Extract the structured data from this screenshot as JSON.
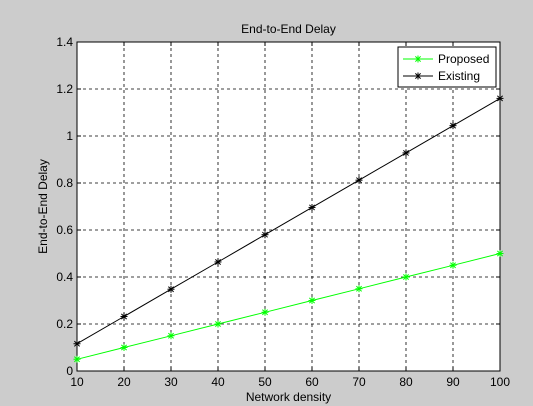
{
  "chart_data": {
    "type": "line",
    "title": "End-to-End Delay",
    "xlabel": "Network density",
    "ylabel": "End-to-End Delay",
    "xlim": [
      10,
      100
    ],
    "ylim": [
      0,
      1.4
    ],
    "x_ticks": [
      "10",
      "20",
      "30",
      "40",
      "50",
      "60",
      "70",
      "80",
      "90",
      "100"
    ],
    "y_ticks": [
      "0",
      "0.2",
      "0.4",
      "0.6",
      "0.8",
      "1",
      "1.2",
      "1.4"
    ],
    "grid": true,
    "legend_position": "top-right",
    "x": [
      10,
      20,
      30,
      40,
      50,
      60,
      70,
      80,
      90,
      100
    ],
    "series": [
      {
        "name": "Proposed",
        "color": "#00ff00",
        "marker": "asterisk",
        "values": [
          0.05,
          0.1,
          0.15,
          0.2,
          0.25,
          0.3,
          0.35,
          0.4,
          0.45,
          0.5
        ]
      },
      {
        "name": "Existing",
        "color": "#000000",
        "marker": "asterisk",
        "values": [
          0.116,
          0.232,
          0.348,
          0.464,
          0.58,
          0.696,
          0.812,
          0.928,
          1.044,
          1.16
        ]
      }
    ]
  }
}
